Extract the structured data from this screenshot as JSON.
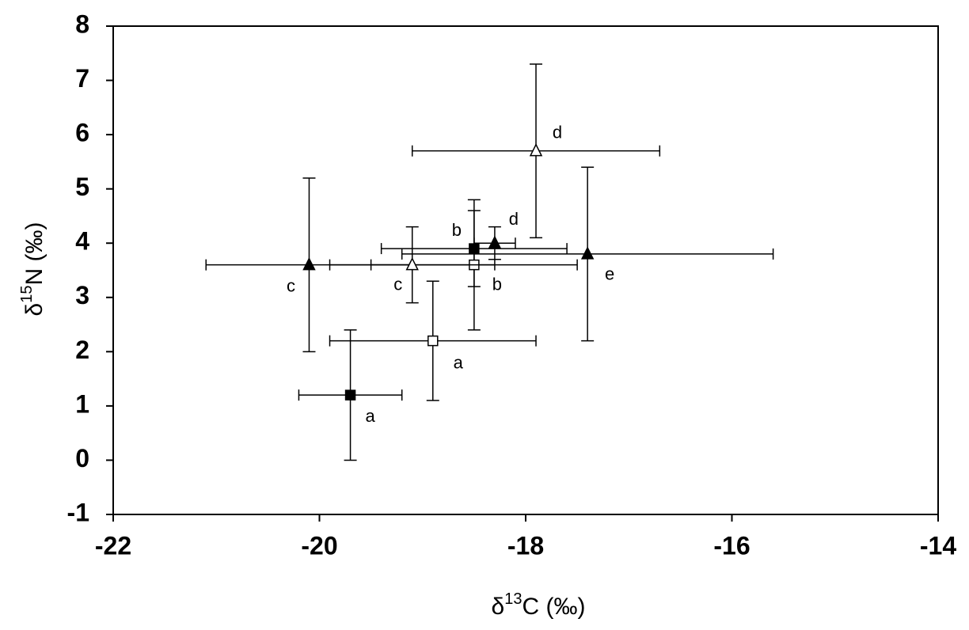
{
  "chart_data": {
    "type": "scatter",
    "xlabel": [
      "δ",
      "13",
      "C  (‰)"
    ],
    "ylabel": [
      "δ",
      "15",
      "N  (‰)"
    ],
    "xlim": [
      -22,
      -14
    ],
    "xticks": [
      -22,
      -20,
      -18,
      -16,
      -14
    ],
    "ylim": [
      -1,
      8
    ],
    "yticks": [
      -1,
      0,
      1,
      2,
      3,
      4,
      5,
      6,
      7,
      8
    ],
    "color": "#000000",
    "series": [
      {
        "marker": "square",
        "filled": true,
        "x": [
          -19.7,
          -18.5
        ],
        "values": [
          1.2,
          3.9
        ],
        "x_err": [
          0.5,
          0.9
        ],
        "y_err": [
          1.2,
          0.7
        ],
        "labels": [
          "a",
          "b"
        ]
      },
      {
        "marker": "square",
        "filled": false,
        "x": [
          -18.9,
          -18.5
        ],
        "values": [
          2.2,
          3.6
        ],
        "x_err": [
          1.0,
          1.0
        ],
        "y_err": [
          1.1,
          1.2
        ],
        "labels": [
          "a",
          "b"
        ]
      },
      {
        "marker": "triangle",
        "filled": true,
        "x": [
          -20.1,
          -18.3,
          -17.4
        ],
        "values": [
          3.6,
          4.0,
          3.8
        ],
        "x_err": [
          1.0,
          0.2,
          1.8
        ],
        "y_err": [
          1.6,
          0.3,
          1.6
        ],
        "labels": [
          "c",
          "d",
          "e"
        ]
      },
      {
        "marker": "triangle",
        "filled": false,
        "x": [
          -19.1,
          -17.9
        ],
        "values": [
          3.6,
          5.7
        ],
        "x_err": [
          0.8,
          1.2
        ],
        "y_err": [
          0.7,
          1.6
        ],
        "labels": [
          "c",
          "d"
        ]
      }
    ]
  }
}
